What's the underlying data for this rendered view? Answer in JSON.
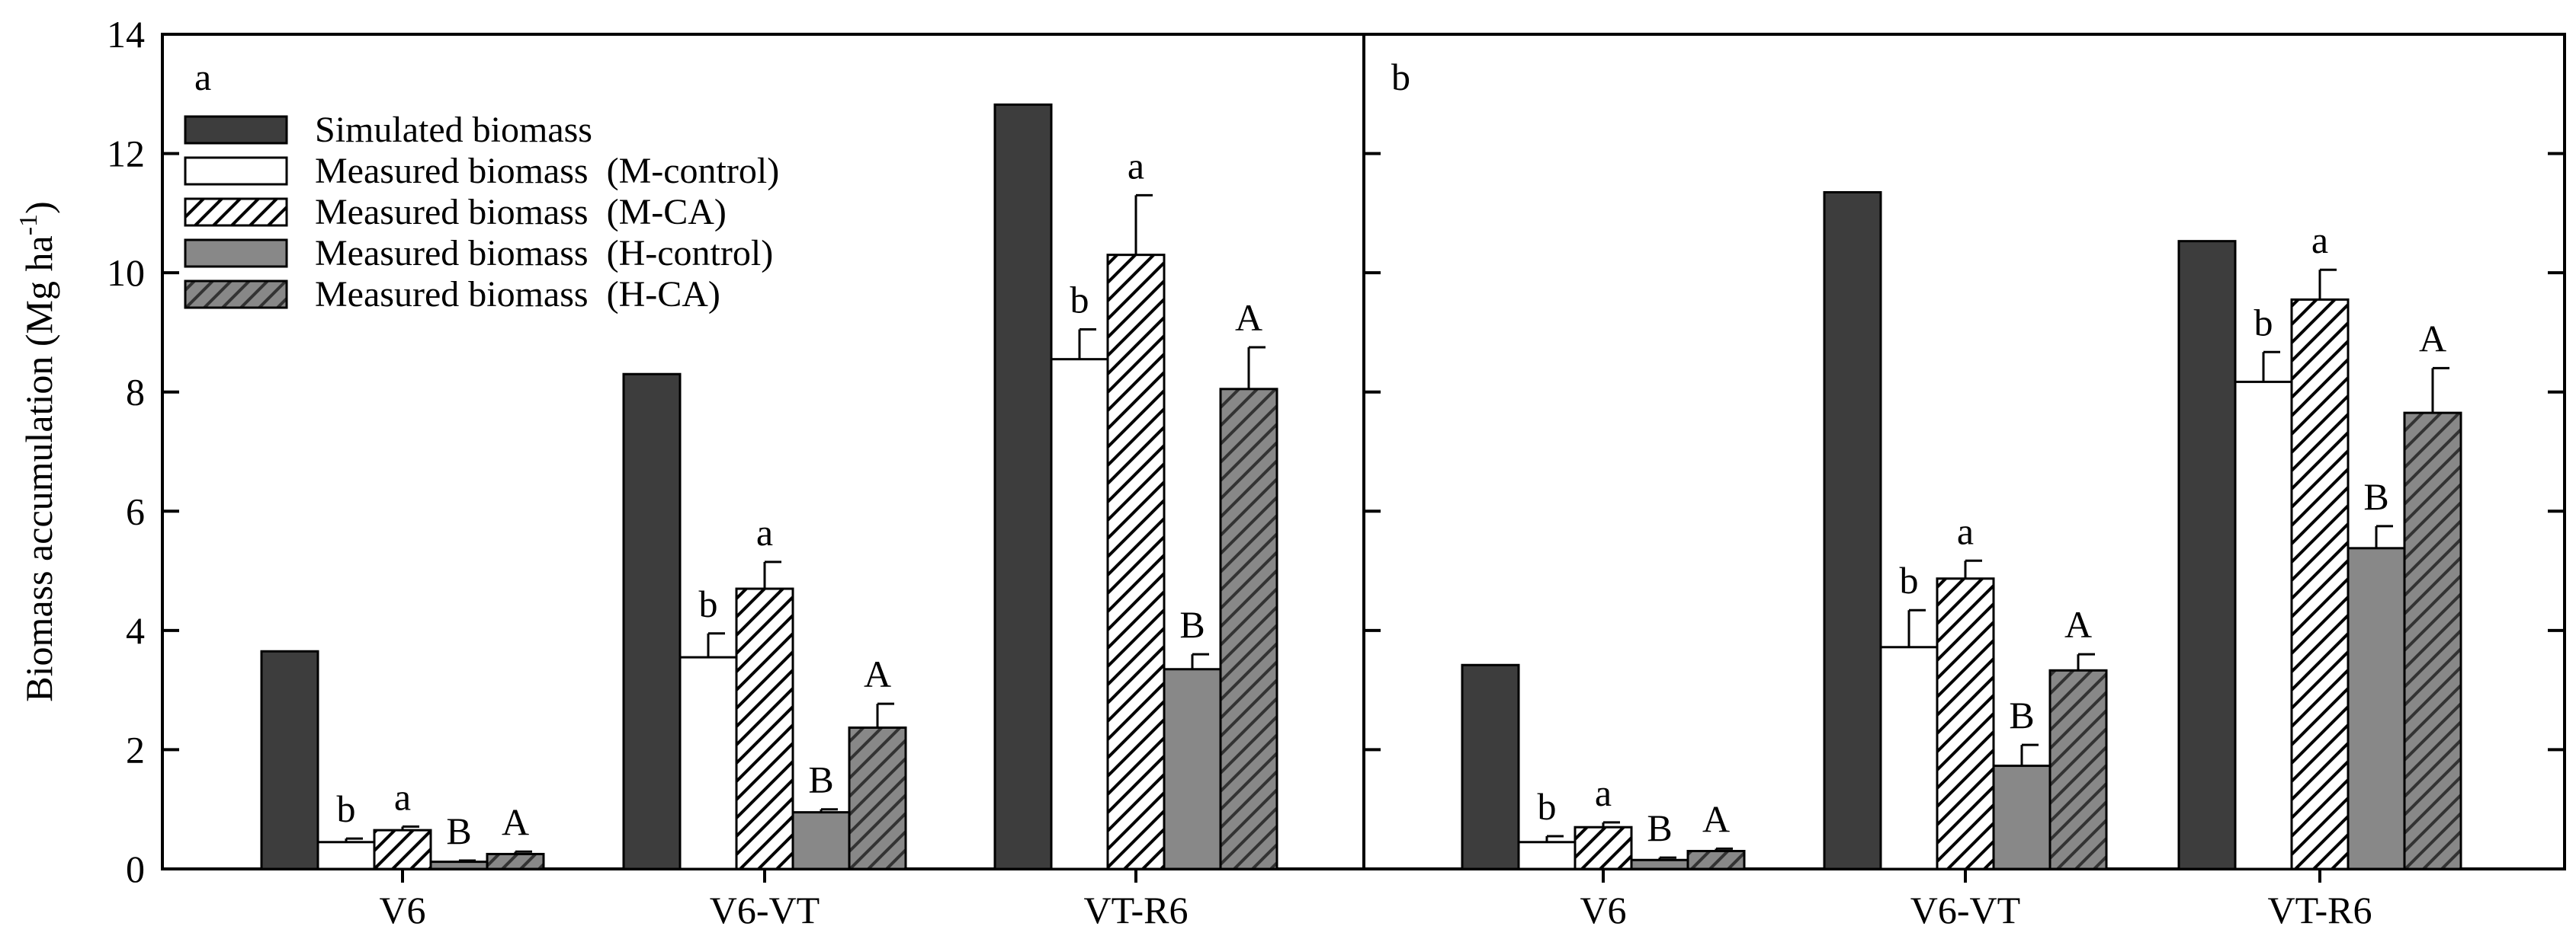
{
  "chart_data": {
    "type": "bar",
    "ylabel_main": "Biomass accumulation (Mg ha",
    "ylabel_sup": "-1",
    "ylabel_close": ")",
    "ylim": [
      0,
      14
    ],
    "yticks": [
      "0",
      "2",
      "4",
      "6",
      "8",
      "10",
      "12",
      "14"
    ],
    "categories": [
      "V6",
      "V6-VT",
      "VT-R6"
    ],
    "legend": [
      {
        "label": "Simulated biomass",
        "style": "dark"
      },
      {
        "label": "Measured biomass  (M-control)",
        "style": "white"
      },
      {
        "label": "Measured biomass  (M-CA)",
        "style": "hatch-white"
      },
      {
        "label": "Measured biomass  (H-control)",
        "style": "grey"
      },
      {
        "label": "Measured biomass  (H-CA)",
        "style": "hatch-grey"
      }
    ],
    "panels": [
      {
        "label": "a",
        "groups": [
          {
            "category": "V6",
            "simulated": 3.65,
            "m_control": 0.45,
            "m_control_err": 0.06,
            "m_ca": 0.65,
            "m_ca_err": 0.06,
            "h_control": 0.12,
            "h_control_err": 0.02,
            "h_ca": 0.25,
            "h_ca_err": 0.04,
            "letters": [
              "b",
              "a",
              "B",
              "A"
            ]
          },
          {
            "category": "V6-VT",
            "simulated": 8.3,
            "m_control": 3.55,
            "m_control_err": 0.4,
            "m_ca": 4.7,
            "m_ca_err": 0.45,
            "h_control": 0.95,
            "h_control_err": 0.05,
            "h_ca": 2.37,
            "h_ca_err": 0.4,
            "letters": [
              "b",
              "a",
              "B",
              "A"
            ]
          },
          {
            "category": "VT-R6",
            "simulated": 12.82,
            "m_control": 8.55,
            "m_control_err": 0.5,
            "m_ca": 10.3,
            "m_ca_err": 1.0,
            "h_control": 3.35,
            "h_control_err": 0.25,
            "h_ca": 8.05,
            "h_ca_err": 0.7,
            "letters": [
              "b",
              "a",
              "B",
              "A"
            ]
          }
        ]
      },
      {
        "label": "b",
        "groups": [
          {
            "category": "V6",
            "simulated": 3.42,
            "m_control": 0.45,
            "m_control_err": 0.1,
            "m_ca": 0.7,
            "m_ca_err": 0.08,
            "h_control": 0.15,
            "h_control_err": 0.04,
            "h_ca": 0.3,
            "h_ca_err": 0.04,
            "letters": [
              "b",
              "a",
              "B",
              "A"
            ]
          },
          {
            "category": "V6-VT",
            "simulated": 11.35,
            "m_control": 3.72,
            "m_control_err": 0.62,
            "m_ca": 4.87,
            "m_ca_err": 0.3,
            "h_control": 1.73,
            "h_control_err": 0.35,
            "h_ca": 3.33,
            "h_ca_err": 0.27,
            "letters": [
              "b",
              "a",
              "B",
              "A"
            ]
          },
          {
            "category": "VT-R6",
            "simulated": 10.53,
            "m_control": 8.17,
            "m_control_err": 0.5,
            "m_ca": 9.55,
            "m_ca_err": 0.5,
            "h_control": 5.38,
            "h_control_err": 0.37,
            "h_ca": 7.65,
            "h_ca_err": 0.75,
            "letters": [
              "b",
              "a",
              "B",
              "A"
            ]
          }
        ]
      }
    ]
  }
}
